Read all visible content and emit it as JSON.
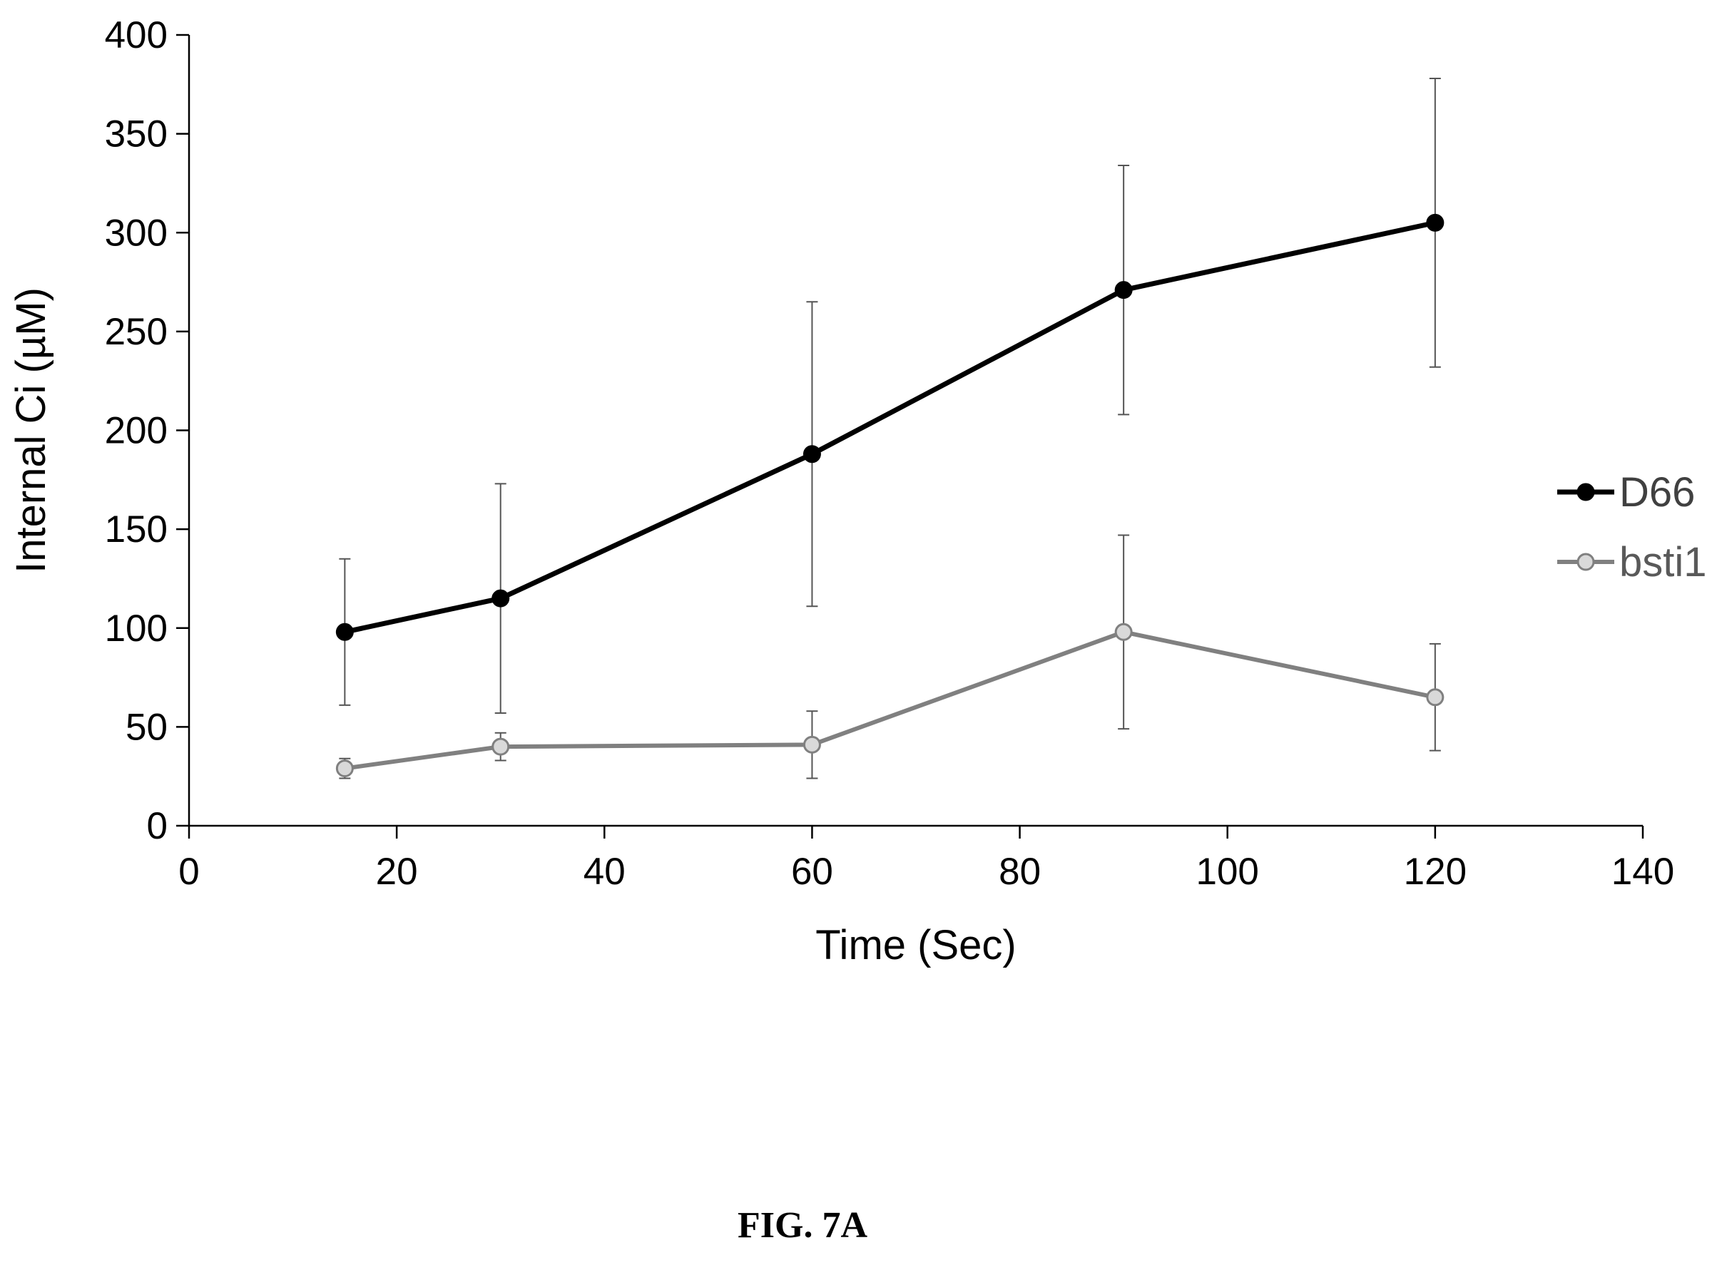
{
  "figure": {
    "caption": "FIG. 7A"
  },
  "chart_data": {
    "type": "line",
    "title": "",
    "xlabel": "Time (Sec)",
    "ylabel": "Internal Ci (µM)",
    "xlim": [
      0,
      140
    ],
    "ylim": [
      0,
      400
    ],
    "xticks": [
      0,
      20,
      40,
      60,
      80,
      100,
      120,
      140
    ],
    "yticks": [
      0,
      50,
      100,
      150,
      200,
      250,
      300,
      350,
      400
    ],
    "grid": false,
    "legend_position": "right",
    "series": [
      {
        "name": "D66",
        "color": "#000000",
        "marker_fill": "#000000",
        "x": [
          15,
          30,
          60,
          90,
          120
        ],
        "y": [
          98,
          115,
          188,
          271,
          305
        ],
        "error": [
          37,
          58,
          77,
          63,
          73
        ]
      },
      {
        "name": "bsti1",
        "color": "#808080",
        "marker_fill": "#d9d9d9",
        "x": [
          15,
          30,
          60,
          90,
          120
        ],
        "y": [
          29,
          40,
          41,
          98,
          65
        ],
        "error": [
          5,
          7,
          17,
          49,
          27
        ]
      }
    ]
  }
}
